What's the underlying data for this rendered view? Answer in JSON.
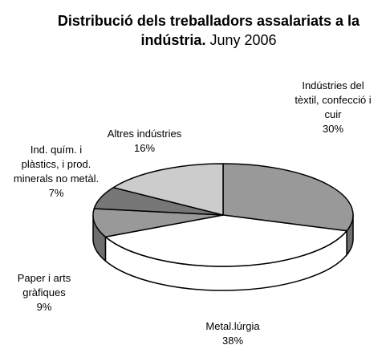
{
  "chart_data": {
    "type": "pie",
    "title": "Distribució dels treballadors assalariats a la indústria.",
    "subtitle": "Juny 2006",
    "categories": [
      "Indústries del tèxtil, confecció i cuir",
      "Metal.lúrgia",
      "Paper i arts gràfiques",
      "Ind. quím. i plàstics, i prod. minerals no metàl.",
      "Altres indústries"
    ],
    "values": [
      30,
      38,
      9,
      7,
      16
    ],
    "value_labels": [
      "30%",
      "38%",
      "9%",
      "7%",
      "16%"
    ],
    "colors": [
      "#999999",
      "#ffffff",
      "#999999",
      "#777777",
      "#cccccc"
    ]
  }
}
